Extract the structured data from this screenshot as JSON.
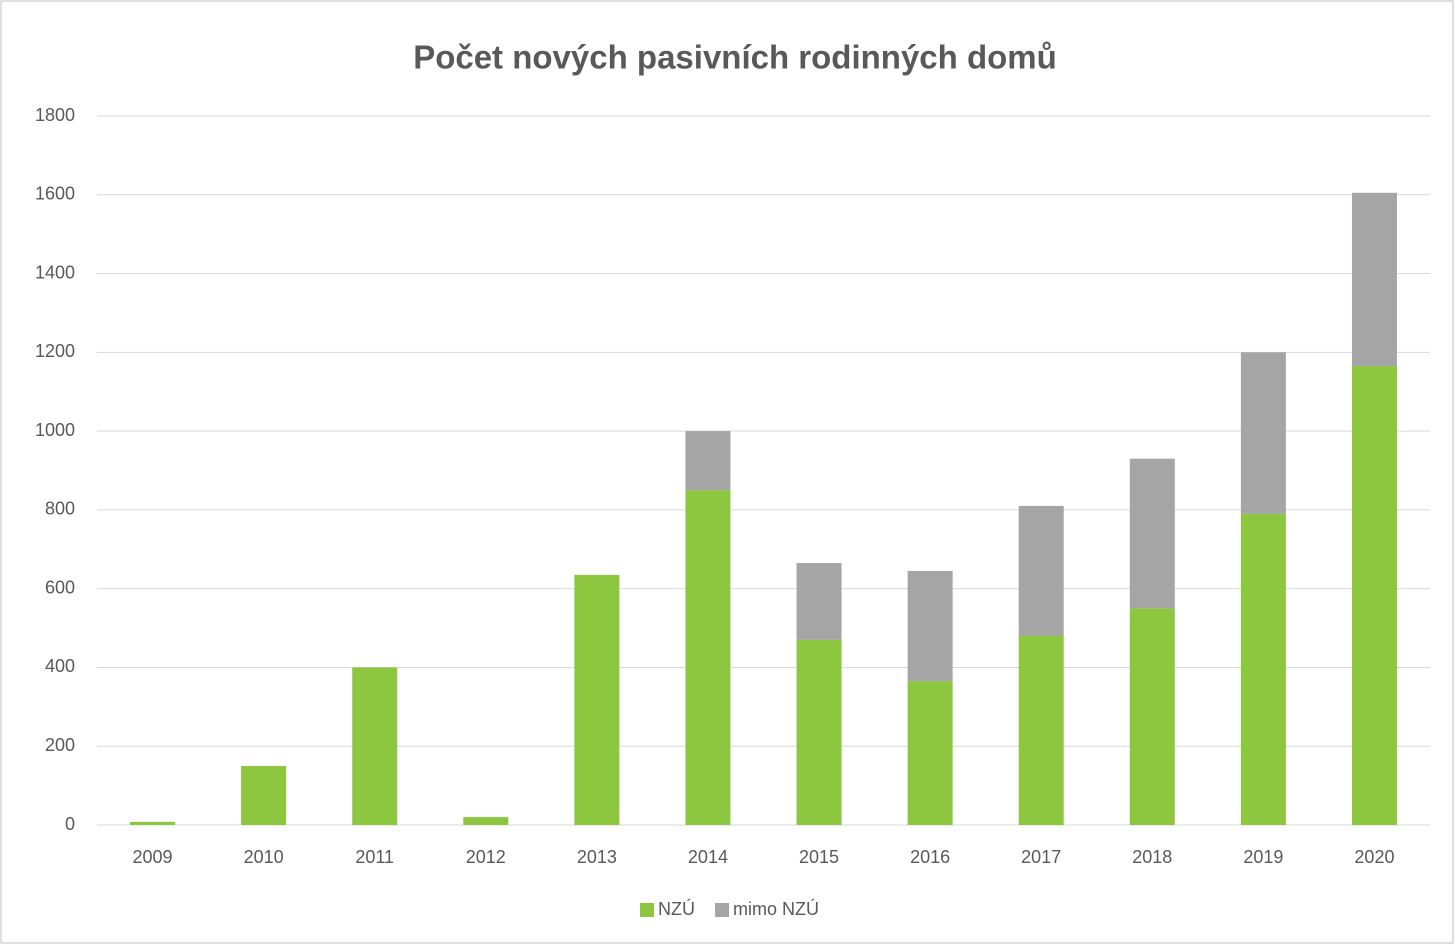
{
  "chart_data": {
    "type": "stacked_bar",
    "title": "Počet nových pasivních rodinných domů",
    "categories": [
      "2009",
      "2010",
      "2011",
      "2012",
      "2013",
      "2014",
      "2015",
      "2016",
      "2017",
      "2018",
      "2019",
      "2020"
    ],
    "series": [
      {
        "name": "NZÚ",
        "color": "#8dc63f",
        "values": [
          8,
          150,
          400,
          20,
          635,
          850,
          470,
          365,
          480,
          550,
          790,
          1165
        ]
      },
      {
        "name": "mimo NZÚ",
        "color": "#a5a5a5",
        "values": [
          0,
          0,
          0,
          0,
          0,
          150,
          195,
          280,
          330,
          380,
          410,
          440
        ]
      }
    ],
    "ylim": [
      0,
      1800
    ],
    "yticks": [
      0,
      200,
      400,
      600,
      800,
      1000,
      1200,
      1400,
      1600,
      1800
    ],
    "grid": true,
    "legend": "bottom"
  }
}
